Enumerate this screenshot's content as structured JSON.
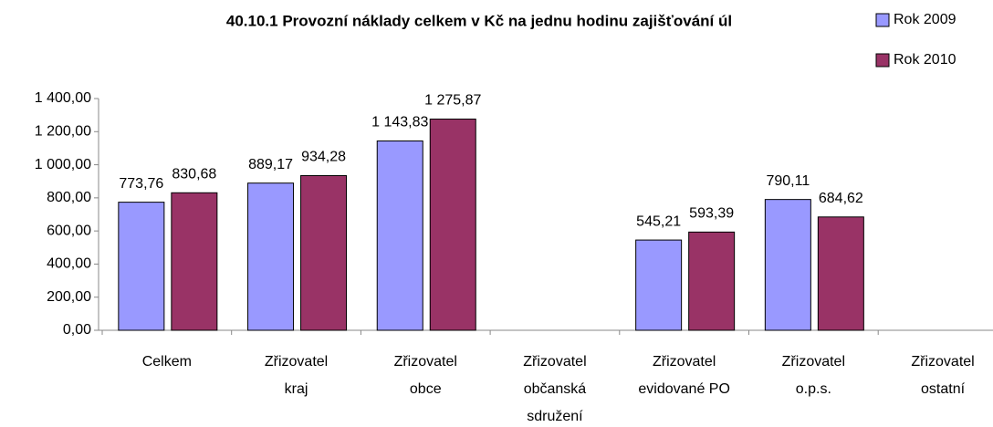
{
  "chart_data": {
    "type": "bar",
    "title": "40.10.1 Provozní náklady celkem v Kč na jednu hodinu zajišťování úl",
    "categories": [
      "Celkem",
      "Zřizovatel\nkraj",
      "Zřizovatel\nobce",
      "Zřizovatel\nobčanská\nsdružení",
      "Zřizovatel\nevidované PO",
      "Zřizovatel\no.p.s.",
      "Zřizovatel\nostatní"
    ],
    "series": [
      {
        "name": "Rok 2009",
        "color": "#9999ff",
        "values": [
          773.76,
          889.17,
          1143.83,
          null,
          545.21,
          790.11,
          null
        ],
        "value_labels": [
          "773,76",
          "889,17",
          "1 143,83",
          null,
          "545,21",
          "790,11",
          null
        ]
      },
      {
        "name": "Rok 2010",
        "color": "#993366",
        "values": [
          830.68,
          934.28,
          1275.87,
          null,
          593.39,
          684.62,
          null
        ],
        "value_labels": [
          "830,68",
          "934,28",
          "1 275,87",
          null,
          "593,39",
          "684,62",
          null
        ]
      }
    ],
    "ylim": [
      0,
      1400
    ],
    "yticks": [
      {
        "value": 0,
        "label": "0,00"
      },
      {
        "value": 200,
        "label": "200,00"
      },
      {
        "value": 400,
        "label": "400,00"
      },
      {
        "value": 600,
        "label": "600,00"
      },
      {
        "value": 800,
        "label": "800,00"
      },
      {
        "value": 1000,
        "label": "1 000,00"
      },
      {
        "value": 1200,
        "label": "1 200,00"
      },
      {
        "value": 1400,
        "label": "1 400,00"
      }
    ],
    "legend": "top-right"
  }
}
